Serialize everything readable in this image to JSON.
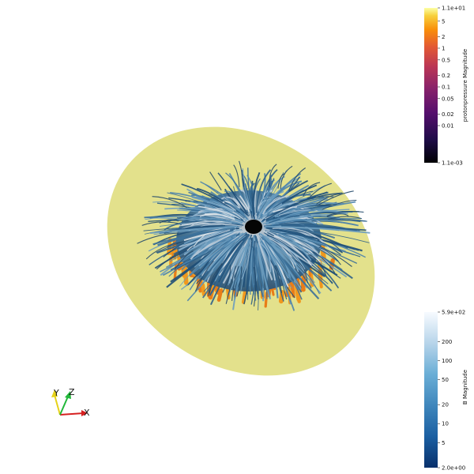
{
  "scene": {
    "disk_color": "#e3e18c",
    "core_color": "#050505"
  },
  "colorbars": [
    {
      "id": "pressure",
      "title": "protonpressure Magnitude",
      "colormap": "inferno",
      "scale": "log",
      "range": [
        0.0011,
        11
      ],
      "ticks": [
        {
          "label": "1.1e+01",
          "value": 11
        },
        {
          "label": "5",
          "value": 5
        },
        {
          "label": "2",
          "value": 2
        },
        {
          "label": "1",
          "value": 1
        },
        {
          "label": "0.5",
          "value": 0.5
        },
        {
          "label": "0.2",
          "value": 0.2
        },
        {
          "label": "0.1",
          "value": 0.1
        },
        {
          "label": "0.05",
          "value": 0.05
        },
        {
          "label": "0.02",
          "value": 0.02
        },
        {
          "label": "0.01",
          "value": 0.01
        },
        {
          "label": "1.1e-03",
          "value": 0.0011
        }
      ]
    },
    {
      "id": "bfield",
      "title": "B Magnitude",
      "colormap": "blues",
      "scale": "log",
      "range": [
        2,
        590
      ],
      "ticks": [
        {
          "label": "5.9e+02",
          "value": 590
        },
        {
          "label": "200",
          "value": 200
        },
        {
          "label": "100",
          "value": 100
        },
        {
          "label": "50",
          "value": 50
        },
        {
          "label": "20",
          "value": 20
        },
        {
          "label": "10",
          "value": 10
        },
        {
          "label": "5",
          "value": 5
        },
        {
          "label": "2.0e+00",
          "value": 2
        }
      ]
    }
  ],
  "axes": {
    "x": {
      "label": "X",
      "color": "#d62020"
    },
    "y": {
      "label": "Y",
      "color": "#e6d21a"
    },
    "z": {
      "label": "Z",
      "color": "#22b83a"
    }
  }
}
